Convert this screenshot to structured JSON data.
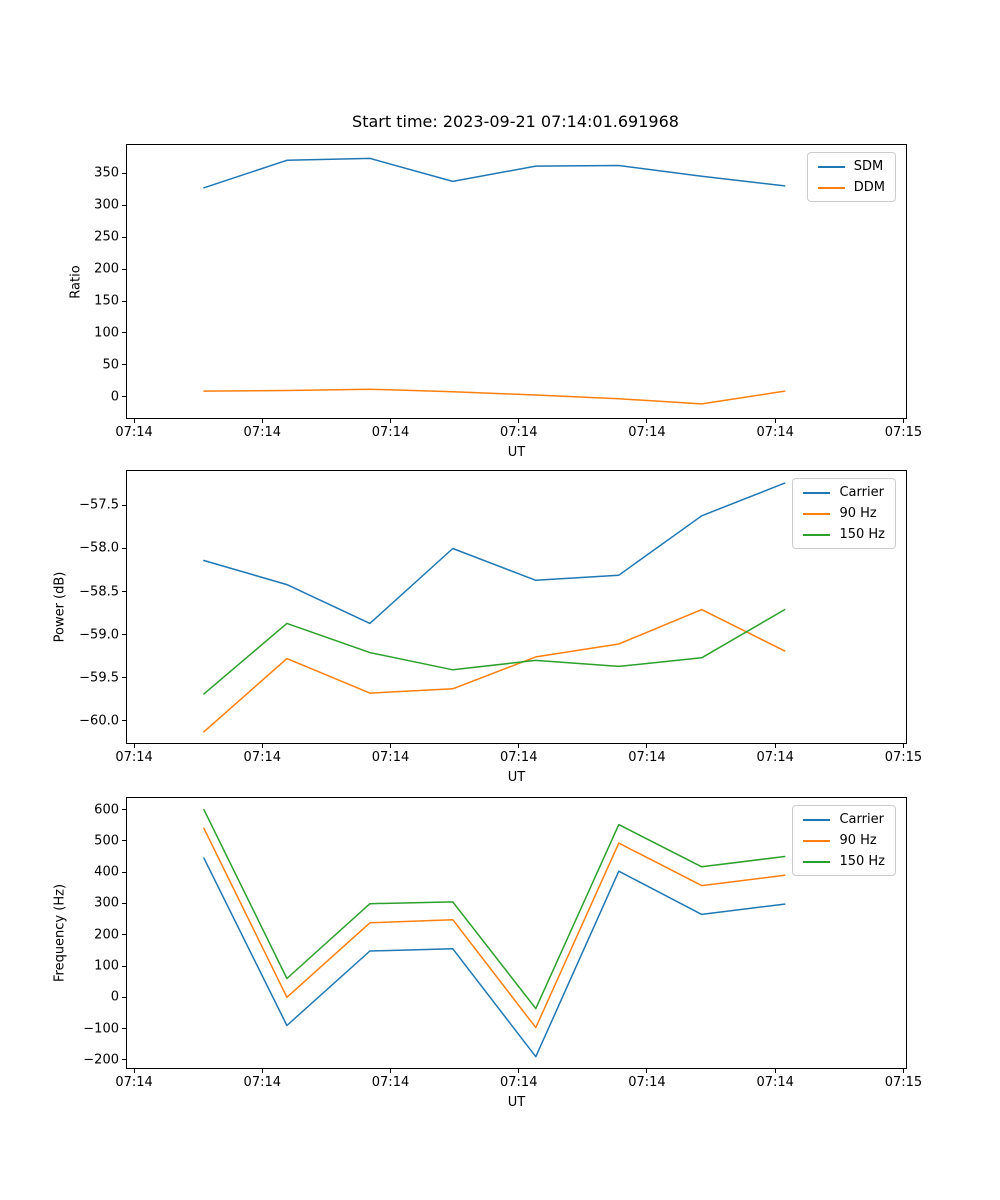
{
  "title": "Start time: 2023-09-21 07:14:01.691968",
  "colors": {
    "series_blue": "#1f77b4",
    "series_orange": "#ff7f0e",
    "series_green": "#2ca02c",
    "spine": "#000000",
    "legend_border": "#cccccc"
  },
  "chart_data": [
    {
      "type": "line",
      "xlabel": "UT",
      "ylabel": "Ratio",
      "grid": false,
      "legend_position": "upper right",
      "xlim": [
        -0.55,
        60.2
      ],
      "ylim": [
        -33,
        394
      ],
      "x": [
        5.45,
        11.92,
        18.39,
        24.86,
        31.33,
        37.8,
        44.27,
        50.74
      ],
      "xticks": {
        "values": [
          0,
          10,
          20,
          30,
          40,
          50,
          60
        ],
        "labels": [
          "07:14",
          "07:14",
          "07:14",
          "07:14",
          "07:14",
          "07:14",
          "07:15"
        ]
      },
      "yticks": {
        "values": [
          0,
          50,
          100,
          150,
          200,
          250,
          300,
          350
        ],
        "labels": [
          "0",
          "50",
          "100",
          "150",
          "200",
          "250",
          "300",
          "350"
        ]
      },
      "series": [
        {
          "name": "SDM",
          "color": "#1f77b4",
          "values": [
            327,
            370,
            373,
            337,
            361,
            362,
            345,
            330
          ]
        },
        {
          "name": "DDM",
          "color": "#ff7f0e",
          "values": [
            9,
            10,
            12,
            8,
            3,
            -3,
            -11,
            9
          ]
        }
      ]
    },
    {
      "type": "line",
      "xlabel": "UT",
      "ylabel": "Power (dB)",
      "grid": false,
      "legend_position": "upper right",
      "xlim": [
        -0.55,
        60.2
      ],
      "ylim": [
        -60.26,
        -57.1
      ],
      "x": [
        5.45,
        11.92,
        18.39,
        24.86,
        31.33,
        37.8,
        44.27,
        50.74
      ],
      "xticks": {
        "values": [
          0,
          10,
          20,
          30,
          40,
          50,
          60
        ],
        "labels": [
          "07:14",
          "07:14",
          "07:14",
          "07:14",
          "07:14",
          "07:14",
          "07:15"
        ]
      },
      "yticks": {
        "values": [
          -60.0,
          -59.5,
          -59.0,
          -58.5,
          -58.0,
          -57.5
        ],
        "labels": [
          "−60.0",
          "−59.5",
          "−59.0",
          "−58.5",
          "−58.0",
          "−57.5"
        ]
      },
      "series": [
        {
          "name": "Carrier",
          "color": "#1f77b4",
          "values": [
            -58.14,
            -58.42,
            -58.87,
            -58.0,
            -58.37,
            -58.31,
            -57.62,
            -57.24
          ]
        },
        {
          "name": "90 Hz",
          "color": "#ff7f0e",
          "values": [
            -60.13,
            -59.28,
            -59.68,
            -59.63,
            -59.26,
            -59.11,
            -58.71,
            -59.19
          ]
        },
        {
          "name": "150 Hz",
          "color": "#2ca02c",
          "values": [
            -59.69,
            -58.87,
            -59.21,
            -59.41,
            -59.3,
            -59.37,
            -59.27,
            -58.71
          ]
        }
      ]
    },
    {
      "type": "line",
      "xlabel": "UT",
      "ylabel": "Frequency (Hz)",
      "grid": false,
      "legend_position": "upper right",
      "xlim": [
        -0.55,
        60.2
      ],
      "ylim": [
        -226,
        637
      ],
      "x": [
        5.45,
        11.92,
        18.39,
        24.86,
        31.33,
        37.8,
        44.27,
        50.74
      ],
      "xticks": {
        "values": [
          0,
          10,
          20,
          30,
          40,
          50,
          60
        ],
        "labels": [
          "07:14",
          "07:14",
          "07:14",
          "07:14",
          "07:14",
          "07:14",
          "07:15"
        ]
      },
      "yticks": {
        "values": [
          -200,
          -100,
          0,
          100,
          200,
          300,
          400,
          500,
          600
        ],
        "labels": [
          "−200",
          "−100",
          "0",
          "100",
          "200",
          "300",
          "400",
          "500",
          "600"
        ]
      },
      "series": [
        {
          "name": "Carrier",
          "color": "#1f77b4",
          "values": [
            445,
            -90,
            148,
            155,
            -190,
            403,
            265,
            298
          ]
        },
        {
          "name": "90 Hz",
          "color": "#ff7f0e",
          "values": [
            540,
            0,
            238,
            248,
            -97,
            493,
            357,
            390
          ]
        },
        {
          "name": "150 Hz",
          "color": "#2ca02c",
          "values": [
            600,
            60,
            299,
            305,
            -36,
            552,
            417,
            450
          ]
        }
      ]
    }
  ]
}
